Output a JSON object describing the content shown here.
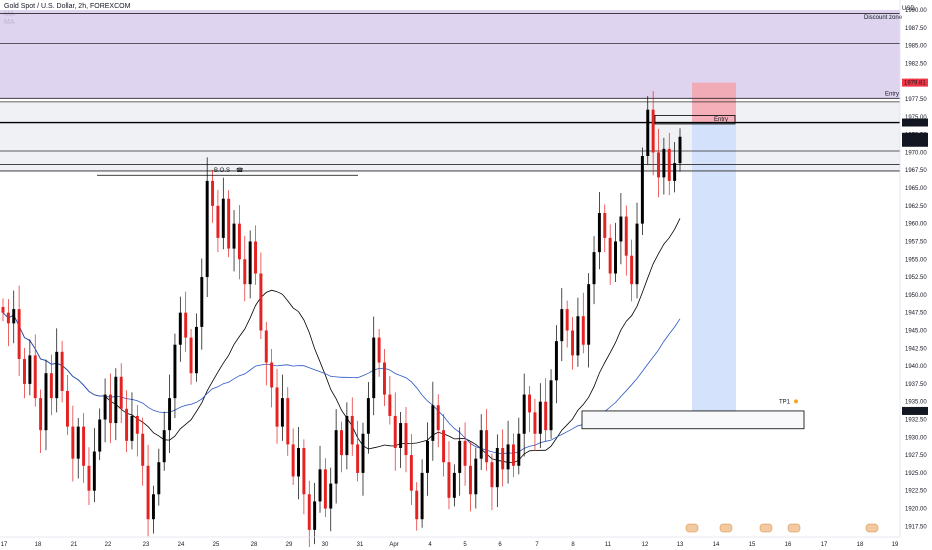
{
  "header": {
    "title": "Gold Spot / U.S. Dollar, 2h, FOREXCOM",
    "indicators": [
      "MA",
      "MA"
    ],
    "currency": "USD"
  },
  "labels": {
    "discount_zone": "Discount zone",
    "entry": "Entry",
    "bos": "B.O.S",
    "tp1": "TP1"
  },
  "price_badges": {
    "upper": "1979.81",
    "entry": "1974.18",
    "current": "1972.21",
    "countdown": "01:06:35",
    "tp": "1933.72"
  },
  "colors": {
    "up": "#000000",
    "down": "#e32222",
    "ma_fast": "#000000",
    "ma_slow": "#2a57c8",
    "discount_zone": "#d9ccec",
    "stop_zone": "#f4a3ad",
    "target_zone": "#cfe0fb"
  },
  "chart_data": {
    "type": "candlestick",
    "symbol": "Gold Spot / U.S. Dollar",
    "timeframe": "2h",
    "ylim": [
      1916,
      1990
    ],
    "y_ticks": [
      1917.5,
      1920.0,
      1922.5,
      1925.0,
      1927.5,
      1930.0,
      1932.5,
      1935.0,
      1937.5,
      1940.0,
      1942.5,
      1945.0,
      1947.5,
      1950.0,
      1952.5,
      1955.0,
      1957.5,
      1960.0,
      1962.5,
      1965.0,
      1967.5,
      1970.0,
      1972.5,
      1975.0,
      1977.5,
      1980.0,
      1982.5,
      1985.0,
      1987.5,
      1990.0
    ],
    "y_tick_labels": [
      "1917.50",
      "1920.00",
      "1922.50",
      "1925.00",
      "1927.50",
      "1930.00",
      "1932.50",
      "1935.00",
      "1937.50",
      "1940.00",
      "1942.50",
      "1945.00",
      "1947.50",
      "1950.00",
      "1952.50",
      "1955.00",
      "1957.50",
      "1960.00",
      "1962.50",
      "1965.00",
      "1967.50",
      "1970.00",
      "1972.50",
      "1975.00",
      "1977.50",
      "1980.00",
      "1982.50",
      "1985.00",
      "1987.50",
      "1990.00"
    ],
    "x_labels": [
      "17",
      "18",
      "21",
      "22",
      "23",
      "24",
      "25",
      "28",
      "29",
      "30",
      "31",
      "Apr",
      "4",
      "5",
      "6",
      "7",
      "8",
      "11",
      "12",
      "13",
      "14",
      "15",
      "16",
      "17",
      "18",
      "19"
    ],
    "key_levels": [
      1989.5,
      1985.3,
      1977.6,
      1977.1,
      1974.2,
      1970.2,
      1968.3,
      1967.4
    ],
    "zones": {
      "discount": [
        1977.5,
        1990.0
      ],
      "stop": [
        1974.2,
        1979.8
      ],
      "target": [
        1933.7,
        1974.2
      ],
      "tp_box": [
        1931.2,
        1933.7
      ]
    },
    "bos_level": 1966.8,
    "closes": [
      1947.5,
      1946.0,
      1948.0,
      1941.0,
      1937.5,
      1941.5,
      1935.5,
      1931.0,
      1939.0,
      1935.5,
      1942.0,
      1936.5,
      1931.5,
      1927.0,
      1931.5,
      1926.0,
      1922.5,
      1928.0,
      1932.5,
      1936.0,
      1932.0,
      1938.5,
      1934.0,
      1929.5,
      1933.0,
      1930.5,
      1926.0,
      1918.5,
      1922.0,
      1926.5,
      1931.0,
      1935.5,
      1943.0,
      1947.5,
      1944.0,
      1939.0,
      1945.5,
      1952.5,
      1966.0,
      1962.5,
      1958.0,
      1963.5,
      1956.5,
      1960.0,
      1955.0,
      1951.5,
      1957.5,
      1953.0,
      1945.0,
      1940.5,
      1937.0,
      1931.5,
      1935.5,
      1929.0,
      1924.5,
      1928.5,
      1922.0,
      1917.0,
      1921.0,
      1925.5,
      1920.0,
      1923.5,
      1931.0,
      1927.5,
      1933.0,
      1929.0,
      1925.0,
      1930.5,
      1935.5,
      1944.0,
      1940.5,
      1936.0,
      1933.0,
      1928.5,
      1932.0,
      1927.5,
      1922.5,
      1918.5,
      1925.0,
      1929.5,
      1934.5,
      1931.0,
      1926.5,
      1921.5,
      1925.0,
      1929.5,
      1926.0,
      1922.0,
      1927.0,
      1931.0,
      1926.5,
      1923.0,
      1928.5,
      1925.5,
      1929.0,
      1926.0,
      1930.5,
      1936.0,
      1933.5,
      1930.5,
      1935.0,
      1931.0,
      1938.0,
      1943.5,
      1948.0,
      1945.0,
      1941.5,
      1947.0,
      1943.0,
      1951.5,
      1956.0,
      1961.5,
      1958.0,
      1953.0,
      1957.5,
      1961.0,
      1955.5,
      1951.5,
      1960.0,
      1969.5,
      1976.0,
      1970.0,
      1966.5,
      1970.5,
      1966.0,
      1968.5,
      1972.2
    ]
  }
}
